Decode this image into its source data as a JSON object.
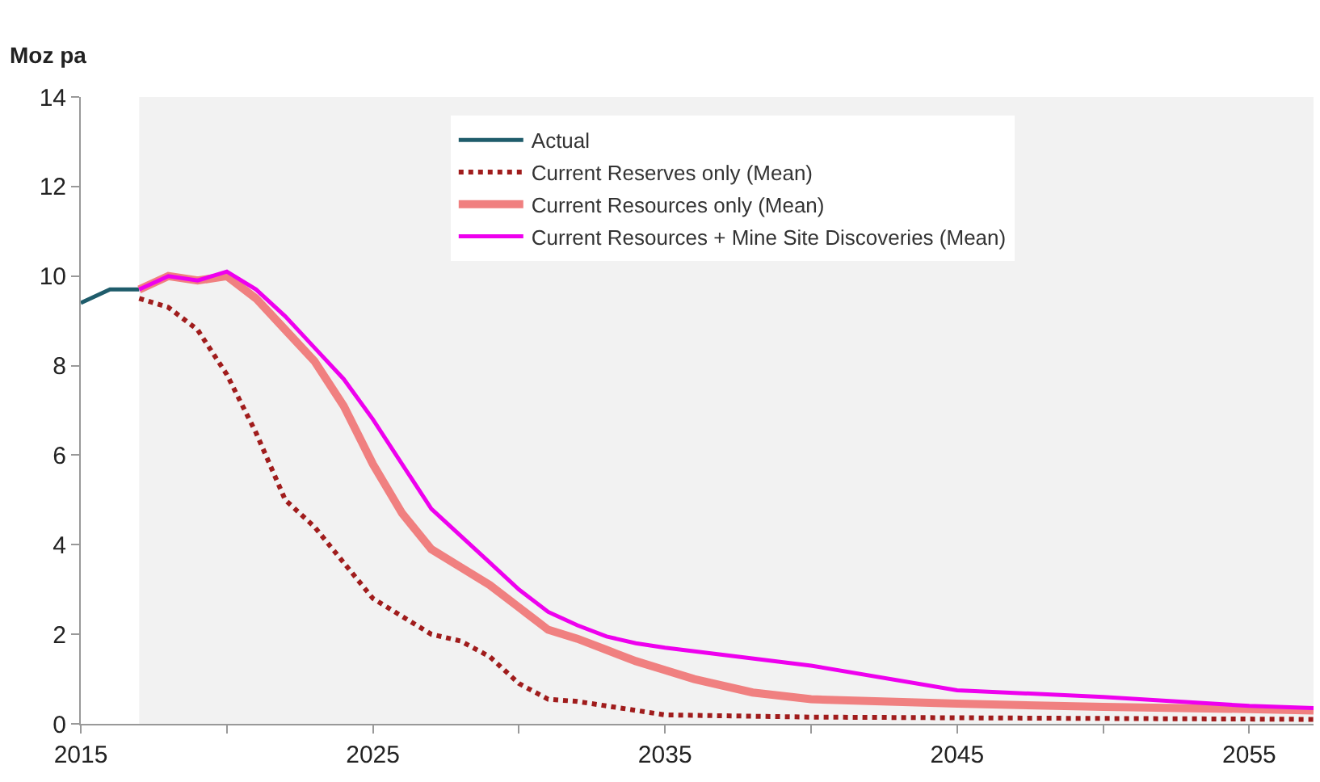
{
  "chart_data": {
    "type": "line",
    "ylabel": "Moz pa",
    "xlim": [
      2015,
      2057.2
    ],
    "ylim": [
      0,
      14
    ],
    "xticks": [
      2015,
      {
        "value": 2020,
        "label": null
      },
      2025,
      {
        "value": 2030,
        "label": null
      },
      2035,
      {
        "value": 2040,
        "label": null
      },
      2045,
      {
        "value": 2050,
        "label": null
      },
      2055
    ],
    "yticks": [
      0,
      2,
      4,
      6,
      8,
      10,
      12,
      14
    ],
    "grid": false,
    "legend": "top",
    "marker": "none",
    "bands": [
      {
        "axis": "x",
        "from": 2017,
        "to": 2057.2,
        "color": "#f2f2f2"
      }
    ],
    "series": [
      {
        "name": "Actual",
        "color": "#1f5c6b",
        "line_style": "solid",
        "x": [
          2015,
          2016,
          2017
        ],
        "values": [
          9.4,
          9.7,
          9.7
        ]
      },
      {
        "name": "Current Reserves only (Mean)",
        "color": "#a01c1c",
        "line_style": "dotted",
        "x": [
          2017,
          2018,
          2019,
          2020,
          2021,
          2022,
          2023,
          2024,
          2025,
          2026,
          2027,
          2028,
          2029,
          2030,
          2031,
          2032,
          2033,
          2034,
          2035,
          2040,
          2050,
          2057.2
        ],
        "values": [
          9.5,
          9.3,
          8.8,
          7.8,
          6.5,
          5.0,
          4.4,
          3.6,
          2.8,
          2.4,
          2.0,
          1.85,
          1.5,
          0.9,
          0.55,
          0.5,
          0.4,
          0.3,
          0.2,
          0.15,
          0.12,
          0.1
        ]
      },
      {
        "name": "Current Resources only (Mean)",
        "color": "#f08080",
        "line_style": "solid",
        "x": [
          2017,
          2018,
          2019,
          2020,
          2021,
          2022,
          2023,
          2024,
          2025,
          2026,
          2027,
          2028,
          2029,
          2030,
          2031,
          2032,
          2033,
          2034,
          2035,
          2036,
          2038,
          2040,
          2045,
          2050,
          2055,
          2057.2
        ],
        "values": [
          9.7,
          10.0,
          9.9,
          10.0,
          9.5,
          8.8,
          8.1,
          7.1,
          5.8,
          4.7,
          3.9,
          3.5,
          3.1,
          2.6,
          2.1,
          1.9,
          1.65,
          1.4,
          1.2,
          1.0,
          0.7,
          0.55,
          0.45,
          0.38,
          0.33,
          0.3
        ]
      },
      {
        "name": "Current Resources + Mine Site Discoveries (Mean)",
        "color": "#ee00ee",
        "line_style": "solid",
        "x": [
          2017,
          2018,
          2019,
          2020,
          2021,
          2022,
          2023,
          2024,
          2025,
          2026,
          2027,
          2028,
          2029,
          2030,
          2031,
          2032,
          2033,
          2034,
          2035,
          2040,
          2045,
          2050,
          2055,
          2057.2
        ],
        "values": [
          9.7,
          10.0,
          9.9,
          10.1,
          9.7,
          9.1,
          8.4,
          7.7,
          6.8,
          5.8,
          4.8,
          4.2,
          3.6,
          3.0,
          2.5,
          2.2,
          1.95,
          1.8,
          1.7,
          1.3,
          0.75,
          0.6,
          0.4,
          0.35
        ]
      }
    ]
  }
}
